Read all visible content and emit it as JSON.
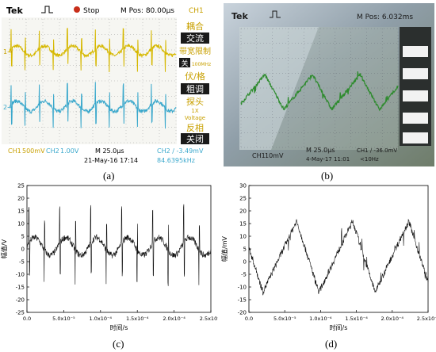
{
  "panel_a": {
    "header": {
      "brand": "Tek",
      "state": "Stop",
      "mpos": "M Pos: 80.00µs",
      "channel": "CH1"
    },
    "menu": [
      "耦合",
      "交流",
      "带宽限制",
      "关",
      "100MHz",
      "伏/格",
      "粗调",
      "探头",
      "1X",
      "Voltage",
      "反相",
      "关闭"
    ],
    "footer": {
      "ch1": "CH1",
      "ch1_scale": "500mV",
      "ch2": "CH2",
      "ch2_scale": "1.00V",
      "time": "M 25.0µs",
      "trigger": "CH2 ∕ -3.49mV",
      "date": "21-May-16 17:14",
      "freq": "84.6395kHz"
    },
    "marker1": "1→",
    "marker2": "2→",
    "colors": {
      "trace1": "#d6b800",
      "trace2": "#3aa8cc",
      "bg": "#fafafa",
      "menu": "#c8a000"
    }
  },
  "panel_b": {
    "header": {
      "brand": "Tek",
      "mpos": "M Pos: 6.032ms"
    },
    "footer": {
      "ch1": "CH1",
      "ch1_scale": "10mV",
      "time": "M 25.0µs",
      "trigger": "CH1 ∕ -36.0mV",
      "date": "4-May-17 11:01",
      "freq": "<10Hz"
    },
    "colors": {
      "trace": "#2e8b2e"
    }
  },
  "panel_c": {
    "chart_data": {
      "type": "line",
      "ylabel": "幅值/V",
      "xlabel": "时间/s",
      "ylim": [
        -25,
        25
      ],
      "xlim": [
        0,
        0.00025
      ],
      "yticks": [
        "25",
        "20",
        "15",
        "10",
        "5",
        "0",
        "-5",
        "-10",
        "-15",
        "-20",
        "-25"
      ],
      "xticks": [
        "0.0",
        "5.0x10⁻⁵",
        "1.0x10⁻⁴",
        "1.5x10⁻⁴",
        "2.0x10⁻⁴",
        "2.5x10⁻⁴"
      ]
    }
  },
  "panel_d": {
    "chart_data": {
      "type": "line",
      "ylabel": "幅值/mV",
      "xlabel": "时间/s",
      "ylim": [
        -20,
        30
      ],
      "xlim": [
        0,
        0.00025
      ],
      "yticks": [
        "30",
        "25",
        "20",
        "15",
        "10",
        "5",
        "0",
        "-5",
        "-10",
        "-15",
        "-20"
      ],
      "xticks": [
        "0.0",
        "5.0x10⁻⁵",
        "1.0x10⁻⁴",
        "1.5x10⁻⁴",
        "2.0x10⁻⁴",
        "2.5x10⁻⁴"
      ]
    }
  },
  "captions": {
    "a": "(a)",
    "b": "(b)",
    "c": "(c)",
    "d": "(d)"
  }
}
